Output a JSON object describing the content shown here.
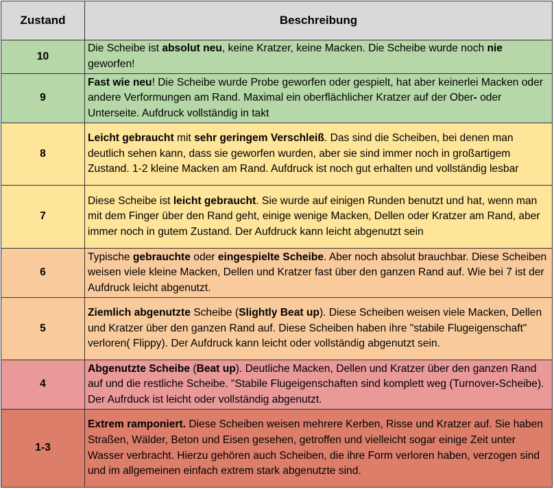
{
  "header": {
    "zustand": "Zustand",
    "beschreibung": "Beschreibung",
    "color": "#d9d9d9"
  },
  "rows": [
    {
      "zustand": "10",
      "color": "#b6d7a8",
      "segments": [
        {
          "text": "Die Scheibe ist ",
          "bold": false
        },
        {
          "text": "absolut neu",
          "bold": true
        },
        {
          "text": ", keine Kratzer, keine Macken. Die Scheibe wurde noch ",
          "bold": false
        },
        {
          "text": "nie",
          "bold": true
        },
        {
          "text": " geworfen!",
          "bold": false
        }
      ]
    },
    {
      "zustand": "9",
      "color": "#b6d7a8",
      "segments": [
        {
          "text": "Fast wie neu",
          "bold": true
        },
        {
          "text": "! Die Scheibe wurde Probe geworfen oder gespielt, hat aber keinerlei Macken oder andere Verformungen am Rand. Maximal ein oberflächlicher Kratzer auf der Ober",
          "bold": false
        },
        {
          "text": "-",
          "bold": true
        },
        {
          "text": " oder Unterseite. Aufdruck vollständig in takt",
          "bold": false
        }
      ]
    },
    {
      "zustand": "8",
      "color": "#ffe599",
      "segments": [
        {
          "text": "Leicht gebraucht",
          "bold": true
        },
        {
          "text": " mit ",
          "bold": false
        },
        {
          "text": "sehr geringem Verschleiß",
          "bold": true
        },
        {
          "text": ". Das sind die Scheiben, bei denen man deutlich sehen kann, dass sie geworfen wurden, aber sie sind immer noch in großartigem Zustand. 1-2 kleine Macken am Rand. Aufdruck ist noch gut erhalten und vollständig lesbar",
          "bold": false
        }
      ]
    },
    {
      "zustand": "7",
      "color": "#ffe599",
      "segments": [
        {
          "text": "Diese Scheibe ist ",
          "bold": false
        },
        {
          "text": "leicht gebraucht",
          "bold": true
        },
        {
          "text": ". Sie wurde auf einigen Runden benutzt und hat, wenn man mit dem Finger über den Rand geht, einige wenige Macken, Dellen oder Kratzer am Rand, aber immer noch in gutem Zustand. Der Aufdruck kann leicht abgenutzt sein",
          "bold": false
        }
      ]
    },
    {
      "zustand": "6",
      "color": "#f9cb9c",
      "segments": [
        {
          "text": "Typische ",
          "bold": false
        },
        {
          "text": "gebrauchte",
          "bold": true
        },
        {
          "text": " oder ",
          "bold": false
        },
        {
          "text": "eingespielte Scheibe",
          "bold": true
        },
        {
          "text": ". Aber noch absolut brauchbar. Diese Scheiben weisen viele kleine Macken, Dellen und Kratzer fast über den ganzen Rand auf. Wie bei 7 ist der Aufdruck leicht abgenutzt.",
          "bold": false
        }
      ]
    },
    {
      "zustand": "5",
      "color": "#f9cb9c",
      "segments": [
        {
          "text": "Ziemlich abgenutzte",
          "bold": true
        },
        {
          "text": " Scheibe (",
          "bold": false
        },
        {
          "text": "Slightly Beat up",
          "bold": true
        },
        {
          "text": "). Diese Scheiben weisen viele Macken, Dellen und Kratzer über den ganzen Rand auf. Diese Scheiben haben ihre \"stabile Flugeigenschaft\" verloren( Flippy). Der Aufdruck kann leicht oder vollständig abgenutzt sein.",
          "bold": false
        }
      ]
    },
    {
      "zustand": "4",
      "color": "#ea9999",
      "segments": [
        {
          "text": "Abgenutzte Scheibe",
          "bold": true
        },
        {
          "text": " (",
          "bold": false
        },
        {
          "text": "Beat up",
          "bold": true
        },
        {
          "text": "). Deutliche  Macken, Dellen und Kratzer über den ganzen Rand auf und die restliche Scheibe. \"Stabile Flugeigenschaften sind komplett weg (Turnover",
          "bold": false
        },
        {
          "text": "-",
          "bold": true
        },
        {
          "text": "Scheibe). Der Aufrduck ist leicht oder vollständig abgenutzt.",
          "bold": false
        }
      ]
    },
    {
      "zustand": "1-3",
      "color": "#dd7e6b",
      "segments": [
        {
          "text": "Extrem ramponiert.",
          "bold": true
        },
        {
          "text": " Diese Scheiben weisen mehrere Kerben, Risse und Kratzer auf. Sie haben Straßen, Wälder, Beton und Eisen gesehen, getroffen und vielleicht sogar einige Zeit unter Wasser verbracht. Hierzu gehören auch Scheiben, die ihre Form verloren haben, verzogen sind und im allgemeinen einfach extrem stark abgenutzte sind.",
          "bold": false
        }
      ]
    }
  ]
}
